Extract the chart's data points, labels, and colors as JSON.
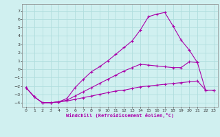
{
  "xlabel": "Windchill (Refroidissement éolien,°C)",
  "background_color": "#d0f0f0",
  "grid_color": "#b0dede",
  "line_color": "#aa00aa",
  "xlim": [
    -0.5,
    23.5
  ],
  "ylim": [
    -4.5,
    7.8
  ],
  "xticks": [
    0,
    1,
    2,
    3,
    4,
    5,
    6,
    7,
    8,
    9,
    10,
    11,
    12,
    13,
    14,
    15,
    16,
    17,
    18,
    19,
    20,
    21,
    22,
    23
  ],
  "yticks": [
    -4,
    -3,
    -2,
    -1,
    0,
    1,
    2,
    3,
    4,
    5,
    6,
    7
  ],
  "line1_x": [
    0,
    1,
    2,
    3,
    4,
    5,
    6,
    7,
    8,
    9,
    10,
    11,
    12,
    13,
    14,
    15,
    16,
    17,
    18,
    19,
    20,
    21,
    22,
    23
  ],
  "line1_y": [
    -2.2,
    -3.3,
    -4.0,
    -4.0,
    -3.9,
    -3.8,
    -3.6,
    -3.4,
    -3.2,
    -3.0,
    -2.8,
    -2.6,
    -2.5,
    -2.3,
    -2.1,
    -2.0,
    -1.9,
    -1.8,
    -1.7,
    -1.6,
    -1.5,
    -1.4,
    -2.5,
    -2.5
  ],
  "line2_x": [
    0,
    1,
    2,
    3,
    4,
    5,
    6,
    7,
    8,
    9,
    10,
    11,
    12,
    13,
    14,
    15,
    16,
    17,
    18,
    19,
    20,
    21,
    22,
    23
  ],
  "line2_y": [
    -2.2,
    -3.3,
    -4.0,
    -4.0,
    -3.9,
    -3.7,
    -3.2,
    -2.7,
    -2.2,
    -1.7,
    -1.2,
    -0.7,
    -0.2,
    0.2,
    0.6,
    0.5,
    0.4,
    0.3,
    0.2,
    0.2,
    0.9,
    0.8,
    -2.5,
    -2.5
  ],
  "line3_x": [
    0,
    1,
    2,
    3,
    4,
    5,
    6,
    7,
    8,
    9,
    10,
    11,
    12,
    13,
    14,
    15,
    16,
    17,
    18,
    19,
    20,
    21
  ],
  "line3_y": [
    -2.2,
    -3.3,
    -4.0,
    -4.0,
    -3.9,
    -3.5,
    -2.2,
    -1.2,
    -0.3,
    0.3,
    1.0,
    1.8,
    2.6,
    3.4,
    4.7,
    6.3,
    6.6,
    6.8,
    5.2,
    3.5,
    2.3,
    0.8
  ]
}
